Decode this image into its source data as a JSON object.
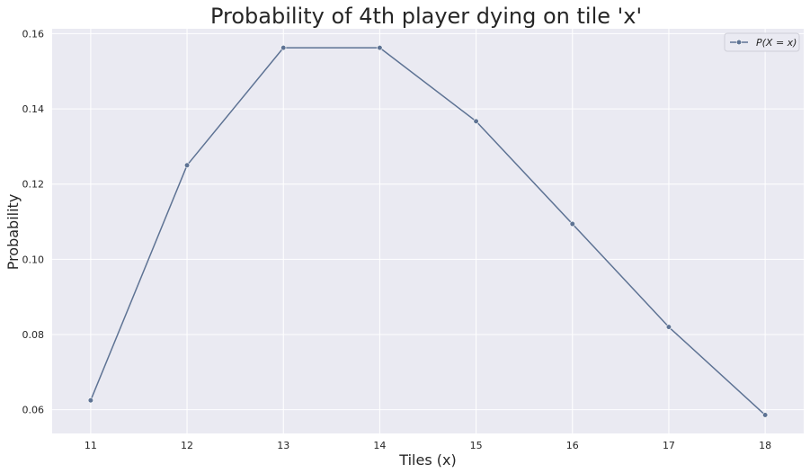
{
  "chart_data": {
    "type": "line",
    "title": "Probability of 4th player dying on tile 'x'",
    "xlabel": "Tiles (x)",
    "ylabel": "Probability",
    "x": [
      11,
      12,
      13,
      14,
      15,
      16,
      17,
      18
    ],
    "series": [
      {
        "name": "P(X = x)",
        "values": [
          0.0625,
          0.125,
          0.15625,
          0.15625,
          0.1367,
          0.1094,
          0.082,
          0.0586
        ],
        "color": "#5e7394"
      }
    ],
    "xticks": [
      "11",
      "12",
      "13",
      "14",
      "15",
      "16",
      "17",
      "18"
    ],
    "yticks": [
      "0.06",
      "0.08",
      "0.10",
      "0.12",
      "0.14",
      "0.16"
    ],
    "xlim": [
      10.6,
      18.4
    ],
    "ylim": [
      0.0537,
      0.1613
    ],
    "grid": true,
    "legend_position": "top-right",
    "background_color": "#eaeaf2",
    "grid_color": "#ffffff"
  }
}
